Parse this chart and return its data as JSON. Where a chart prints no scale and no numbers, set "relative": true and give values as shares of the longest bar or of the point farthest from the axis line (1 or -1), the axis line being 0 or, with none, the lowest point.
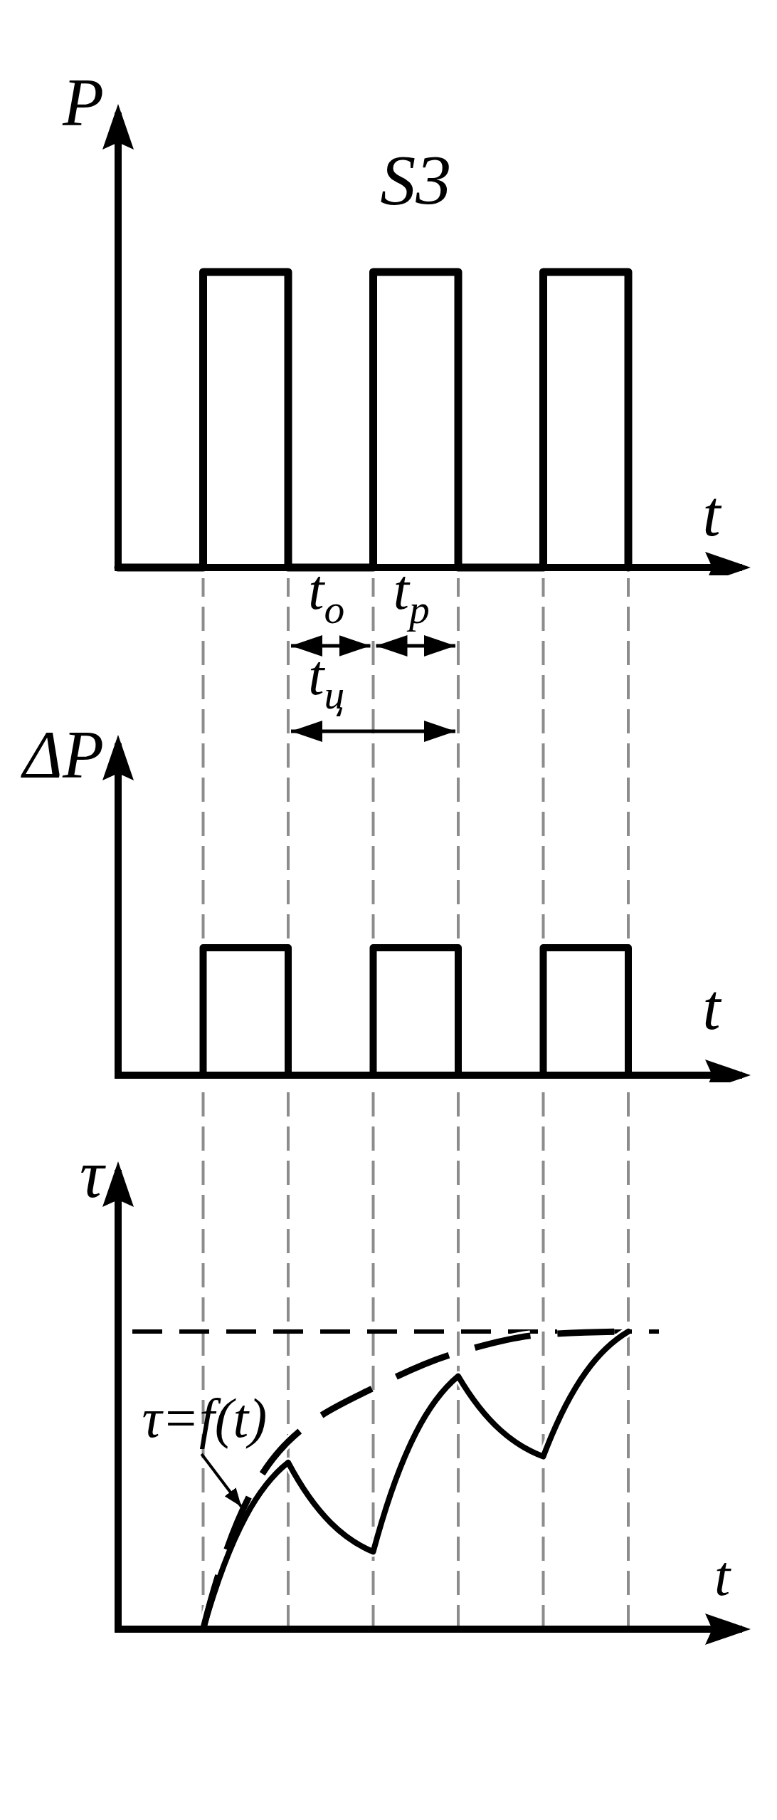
{
  "chart_data": [
    {
      "type": "step",
      "title": "S3",
      "xlabel": "t",
      "ylabel": "P",
      "categories": [
        null,
        null,
        null,
        null,
        null,
        null,
        null
      ],
      "relative": true,
      "series": [
        {
          "color": "#000000",
          "values": [
            0,
            1,
            0,
            1,
            0,
            1,
            0
          ]
        }
      ]
    },
    {
      "type": "step",
      "xlabel": "t",
      "ylabel": "ΔP",
      "categories": [
        null,
        null,
        null,
        null,
        null,
        null,
        null
      ],
      "relative": true,
      "grid": "x",
      "series": [
        {
          "color": "#000000",
          "values": [
            0,
            1,
            0,
            1,
            0,
            1,
            0
          ]
        }
      ],
      "annotations": [
        "t$_{о}$",
        "t$_{р}$",
        "t$_{ц}$"
      ]
    },
    {
      "type": "line",
      "xlabel": "t",
      "ylabel": "τ",
      "categories": [
        null,
        null,
        null,
        null,
        null,
        null,
        null
      ],
      "relative": true,
      "grid": "x",
      "series": [
        {
          "name": "τ=f(t)",
          "color": "#000000",
          "values": [
            0,
            0,
            0.56,
            0.26,
            0.85,
            0.58,
            1
          ]
        },
        {
          "color": "#000000",
          "values": [
            0,
            0,
            0.63,
            0.81,
            0.93,
            0.99,
            1
          ],
          "line_style": "dashed"
        }
      ],
      "ref_lines": [
        {
          "axis": "y",
          "value": 1,
          "line_style": "dashed"
        }
      ]
    }
  ]
}
